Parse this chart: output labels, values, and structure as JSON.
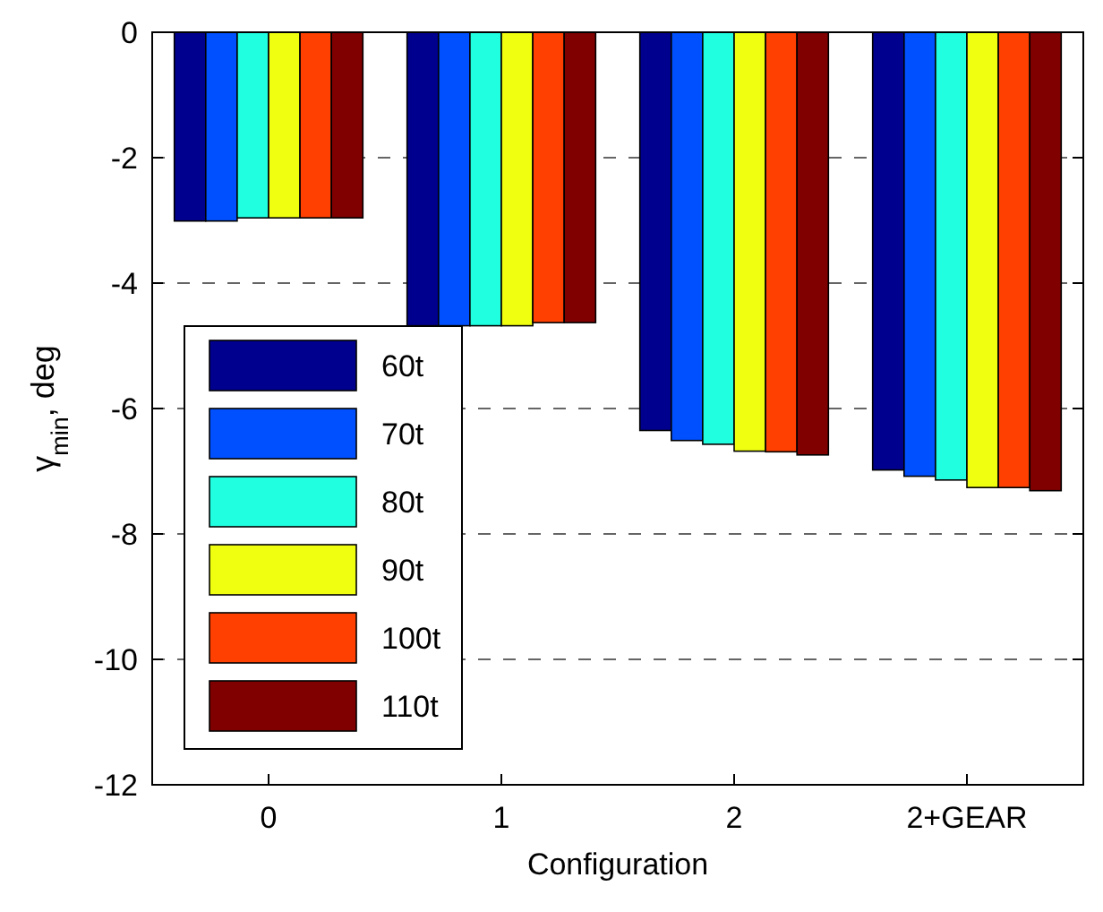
{
  "chart_data": {
    "type": "bar",
    "xlabel": "Configuration",
    "ylabel": "γ$_{min}$, deg",
    "categories": [
      "0",
      "1",
      "2",
      "2+GEAR"
    ],
    "series": [
      {
        "name": "60t",
        "color": "#00008f",
        "values": [
          -3.01,
          -4.68,
          -6.35,
          -6.98
        ]
      },
      {
        "name": "70t",
        "color": "#0050ff",
        "values": [
          -3.01,
          -4.68,
          -6.51,
          -7.08
        ]
      },
      {
        "name": "80t",
        "color": "#20ffe0",
        "values": [
          -2.96,
          -4.68,
          -6.57,
          -7.14
        ]
      },
      {
        "name": "90t",
        "color": "#f0ff10",
        "values": [
          -2.96,
          -4.68,
          -6.68,
          -7.26
        ]
      },
      {
        "name": "100t",
        "color": "#ff4000",
        "values": [
          -2.96,
          -4.63,
          -6.69,
          -7.26
        ]
      },
      {
        "name": "110t",
        "color": "#800000",
        "values": [
          -2.96,
          -4.63,
          -6.74,
          -7.31
        ]
      }
    ],
    "ylim": [
      -12,
      0
    ],
    "yticks": [
      -12,
      -10,
      -8,
      -6,
      -4,
      -2,
      0
    ],
    "grid": "y",
    "legend": "bottom left"
  }
}
